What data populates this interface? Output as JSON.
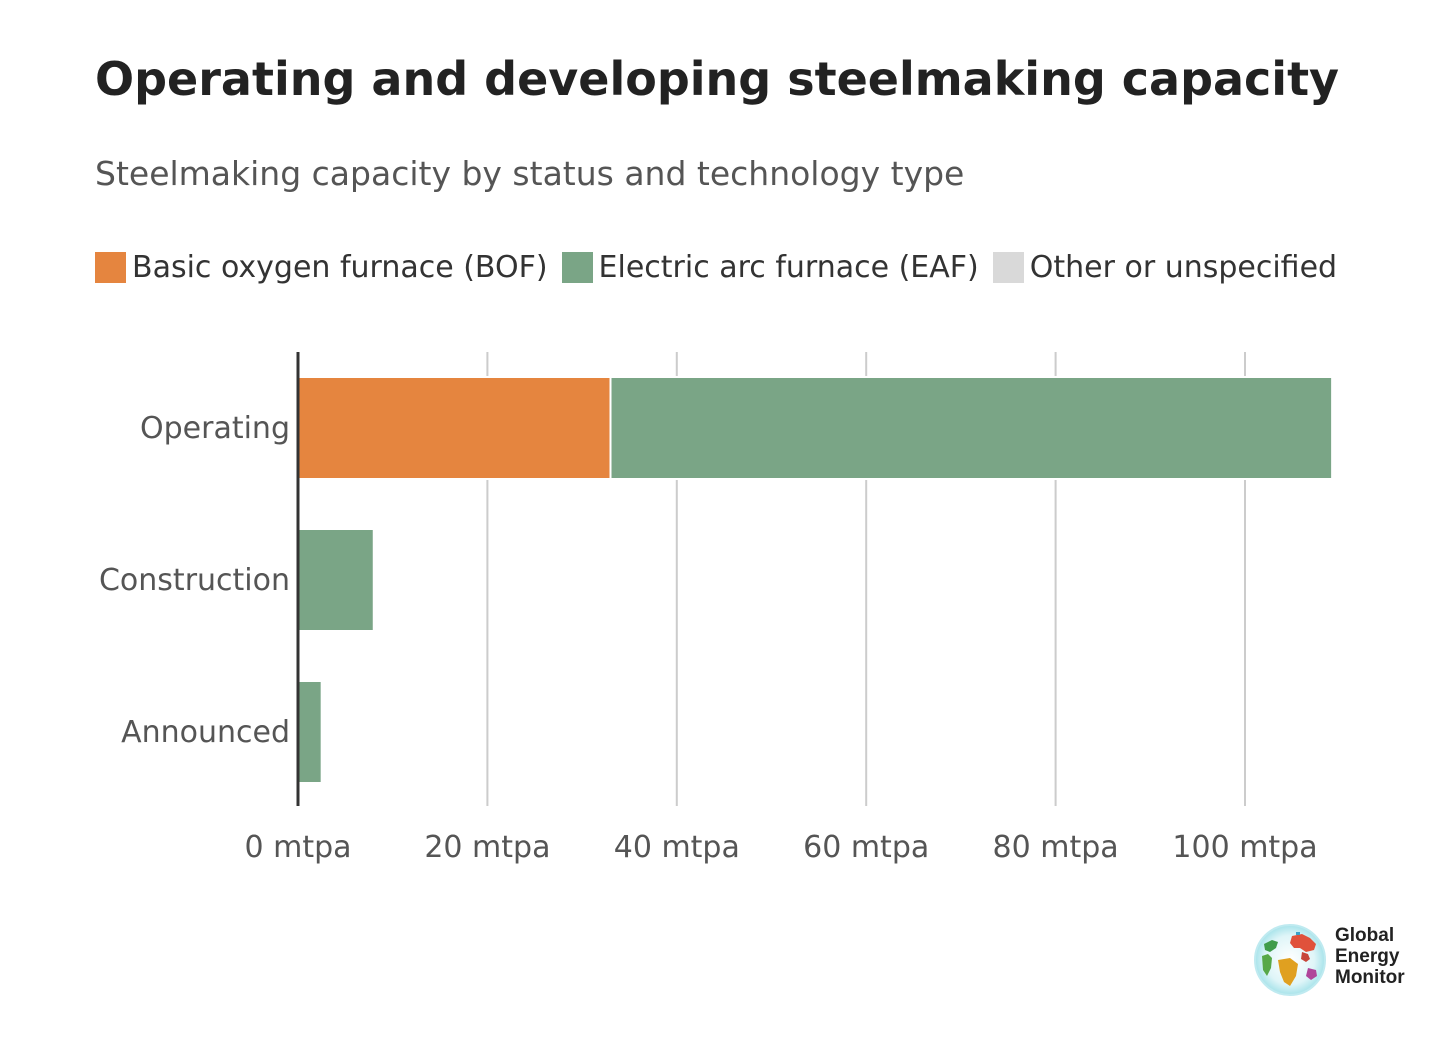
{
  "chart_data": {
    "type": "bar",
    "orientation": "horizontal",
    "stacked": true,
    "title": "Operating and developing steelmaking capacity",
    "subtitle": "Steelmaking capacity by status and technology type",
    "categories": [
      "Operating",
      "Construction",
      "Announced"
    ],
    "series": [
      {
        "name": "Basic oxygen furnace (BOF)",
        "color": "#e5853f",
        "values": [
          33,
          0,
          0
        ]
      },
      {
        "name": "Electric arc furnace (EAF)",
        "color": "#7aa586",
        "values": [
          76.2,
          8,
          2.5
        ]
      },
      {
        "name": "Other or unspecified",
        "color": "#d9d9d9",
        "values": [
          0,
          0,
          0
        ]
      }
    ],
    "x_ticks": [
      0,
      20,
      40,
      60,
      80,
      100
    ],
    "x_tick_labels": [
      "0 mtpa",
      "20 mtpa",
      "40 mtpa",
      "60 mtpa",
      "80 mtpa",
      "100 mtpa"
    ],
    "xlim": [
      0,
      110
    ],
    "xlabel": "",
    "ylabel": "",
    "grid": "vertical",
    "legend": "top-left"
  },
  "logo": {
    "lines": [
      "Global",
      "Energy",
      "Monitor"
    ]
  }
}
